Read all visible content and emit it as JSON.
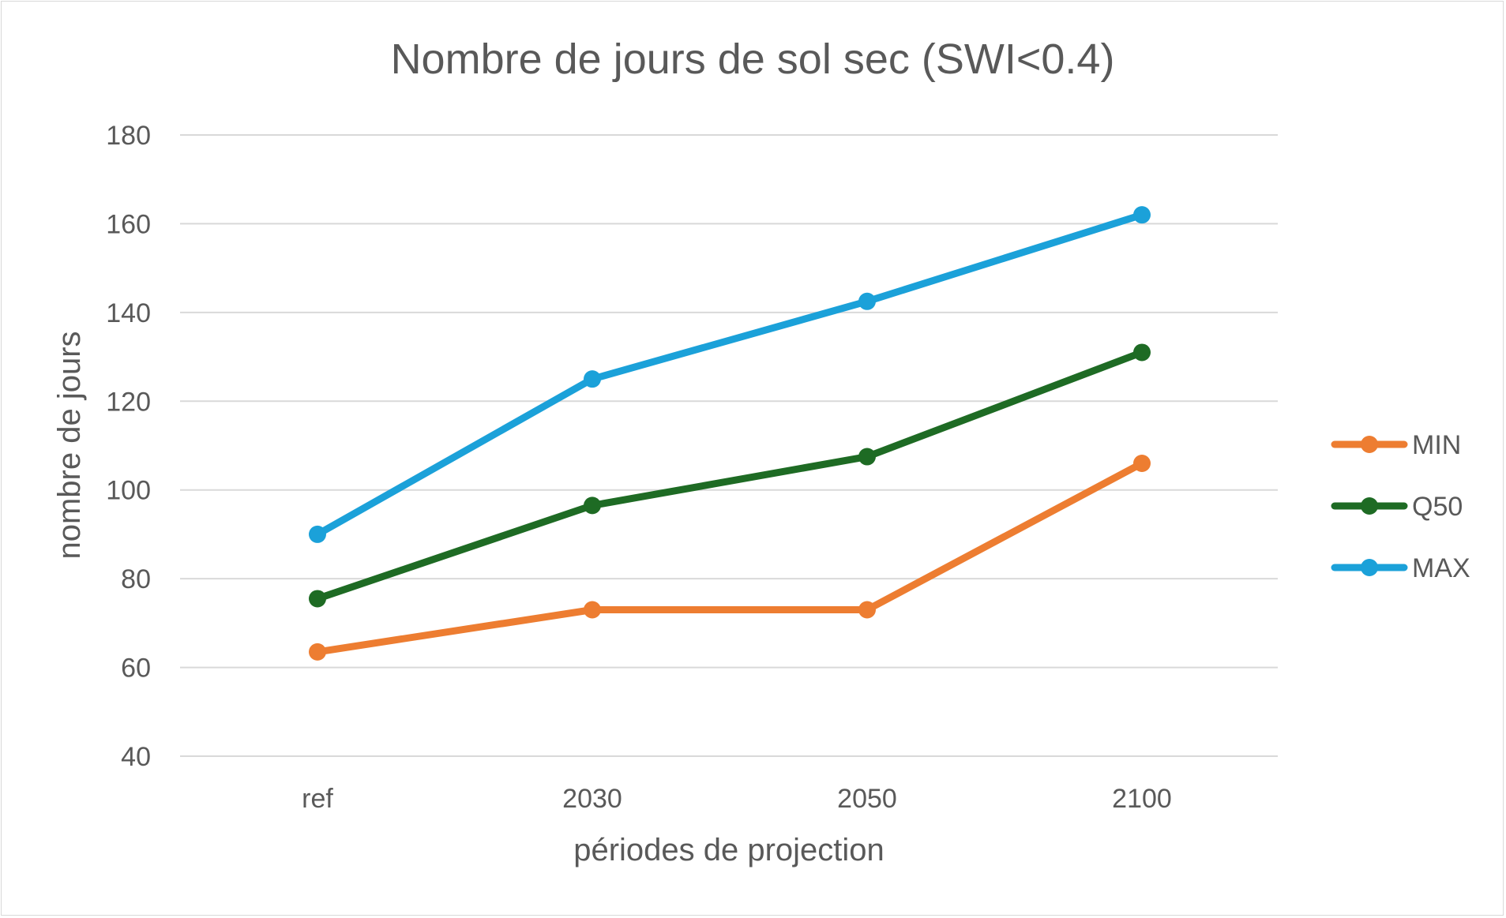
{
  "chart_data": {
    "type": "line",
    "title": "Nombre de jours de sol sec (SWI<0.4)",
    "xlabel": "périodes de projection",
    "ylabel": "nombre de jours",
    "categories": [
      "ref",
      "2030",
      "2050",
      "2100"
    ],
    "ylim": [
      40,
      180
    ],
    "yticks": [
      "40",
      "60",
      "80",
      "100",
      "120",
      "140",
      "160",
      "180"
    ],
    "grid": true,
    "legend_position": "right",
    "series": [
      {
        "name": "MIN",
        "color": "#ed7d31",
        "values": [
          63.5,
          73,
          73,
          106
        ]
      },
      {
        "name": "Q50",
        "color": "#1e6b24",
        "values": [
          75.5,
          96.5,
          107.5,
          131
        ]
      },
      {
        "name": "MAX",
        "color": "#1ba1d9",
        "values": [
          90,
          125,
          142.5,
          162
        ]
      }
    ]
  }
}
